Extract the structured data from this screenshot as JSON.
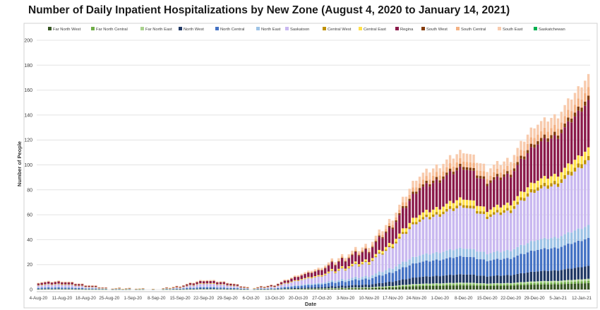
{
  "chart_data": {
    "type": "bar",
    "stacked": true,
    "title": "Number of Daily Inpatient Hospitalizations by New Zone (August 4, 2020 to January 14, 2021)",
    "xlabel": "Date",
    "ylabel": "Number of People",
    "ylim": [
      0,
      200
    ],
    "yticks": [
      0,
      20,
      40,
      60,
      80,
      100,
      120,
      140,
      160,
      180,
      200
    ],
    "grid": true,
    "legend_position": "top",
    "start_date": "2020-08-04",
    "end_date": "2021-01-14",
    "x_tick_labels": [
      "4-Aug-20",
      "11-Aug-20",
      "18-Aug-20",
      "25-Aug-20",
      "1-Sep-20",
      "8-Sep-20",
      "15-Sep-20",
      "22-Sep-20",
      "29-Sep-20",
      "6-Oct-20",
      "13-Oct-20",
      "20-Oct-20",
      "27-Oct-20",
      "3-Nov-20",
      "10-Nov-20",
      "17-Nov-20",
      "24-Nov-20",
      "1-Dec-20",
      "8-Dec-20",
      "15-Dec-20",
      "22-Dec-20",
      "29-Dec-20",
      "5-Jan-21",
      "12-Jan-21"
    ],
    "series": [
      {
        "name": "Far North West",
        "color": "#375623"
      },
      {
        "name": "Far North Central",
        "color": "#70ad47"
      },
      {
        "name": "Far North East",
        "color": "#a9d18e"
      },
      {
        "name": "North West",
        "color": "#203864"
      },
      {
        "name": "North Central",
        "color": "#4472c4"
      },
      {
        "name": "North East",
        "color": "#9dc3e6"
      },
      {
        "name": "Saskatoon",
        "color": "#c9b8f0"
      },
      {
        "name": "Central West",
        "color": "#bf9000"
      },
      {
        "name": "Central East",
        "color": "#ffe04a"
      },
      {
        "name": "Regina",
        "color": "#8b1a4a"
      },
      {
        "name": "South West",
        "color": "#843c0c"
      },
      {
        "name": "South Central",
        "color": "#f4b183"
      },
      {
        "name": "South East",
        "color": "#f8cbad"
      },
      {
        "name": "Saskatchewan",
        "color": "#00b050"
      }
    ],
    "daily_totals": [
      {
        "date": "2020-08-04",
        "total": 6
      },
      {
        "date": "2020-08-11",
        "total": 7
      },
      {
        "date": "2020-08-18",
        "total": 4
      },
      {
        "date": "2020-08-25",
        "total": 1
      },
      {
        "date": "2020-09-01",
        "total": 1
      },
      {
        "date": "2020-09-08",
        "total": 0
      },
      {
        "date": "2020-09-15",
        "total": 3
      },
      {
        "date": "2020-09-22",
        "total": 8
      },
      {
        "date": "2020-09-29",
        "total": 6
      },
      {
        "date": "2020-10-06",
        "total": 1
      },
      {
        "date": "2020-10-13",
        "total": 4
      },
      {
        "date": "2020-10-20",
        "total": 12
      },
      {
        "date": "2020-10-27",
        "total": 18
      },
      {
        "date": "2020-11-03",
        "total": 28
      },
      {
        "date": "2020-11-10",
        "total": 36
      },
      {
        "date": "2020-11-17",
        "total": 58
      },
      {
        "date": "2020-11-24",
        "total": 90
      },
      {
        "date": "2020-12-01",
        "total": 100
      },
      {
        "date": "2020-12-08",
        "total": 112
      },
      {
        "date": "2020-12-15",
        "total": 97
      },
      {
        "date": "2020-12-22",
        "total": 105
      },
      {
        "date": "2020-12-29",
        "total": 132
      },
      {
        "date": "2021-01-05",
        "total": 140
      },
      {
        "date": "2021-01-14",
        "total": 172
      }
    ]
  }
}
